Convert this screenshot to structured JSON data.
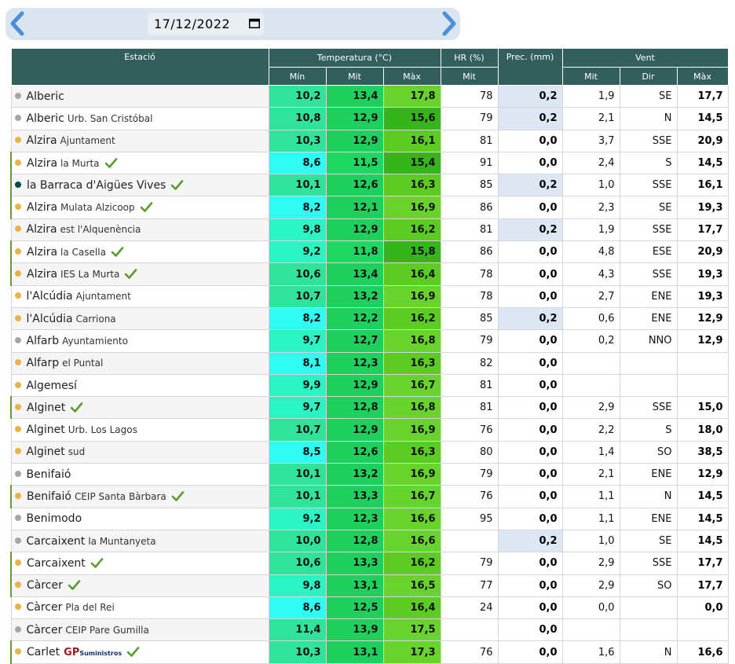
{
  "date_picker": {
    "value": "17/12/2022",
    "prev_icon": "chevron-left-icon",
    "next_icon": "chevron-right-icon",
    "calendar_icon": "calendar-icon"
  },
  "table": {
    "headers": {
      "station": "Estació",
      "temperature": "Temperatura (°C)",
      "humidity": "HR (%)",
      "precip": "Prec. (mm)",
      "wind": "Vent",
      "temp_min": "Mín",
      "temp_avg": "Mit",
      "temp_max": "Màx",
      "hum_avg": "Mit",
      "wind_avg": "Mit",
      "wind_dir": "Dir",
      "wind_max": "Màx"
    },
    "colors": {
      "header_bg": "#325f5c",
      "precip_highlight": "#dde6f3",
      "check_green": "#5a9c2b",
      "dot_orange": "#e9b443",
      "dot_gray": "#a6a6a6",
      "dot_teal": "#004d4d"
    },
    "rows": [
      {
        "name": "Alberic",
        "sub": "",
        "dot": "gray",
        "check": false,
        "min": "10,2",
        "mit": "13,4",
        "max": "17,8",
        "min_c": "#2fe49a",
        "mit_c": "#1fd05f",
        "max_c": "#67d32c",
        "hr": "78",
        "prec": "0,2",
        "prec_hl": true,
        "v_mit": "1,9",
        "v_dir": "SE",
        "v_max": "17,7"
      },
      {
        "name": "Alberic",
        "sub": "Urb. San Cristóbal",
        "dot": "gray",
        "check": false,
        "min": "10,8",
        "mit": "12,9",
        "max": "15,6",
        "min_c": "#2fe49a",
        "mit_c": "#1fd05f",
        "max_c": "#35b41b",
        "hr": "79",
        "prec": "0,2",
        "prec_hl": true,
        "v_mit": "2,1",
        "v_dir": "N",
        "v_max": "14,5"
      },
      {
        "name": "Alzira",
        "sub": "Ajuntament",
        "dot": "orange",
        "check": false,
        "min": "10,3",
        "mit": "12,9",
        "max": "16,1",
        "min_c": "#2fe49a",
        "mit_c": "#1fd05f",
        "max_c": "#5ccc22",
        "hr": "81",
        "prec": "0,0",
        "prec_hl": false,
        "v_mit": "3,7",
        "v_dir": "SSE",
        "v_max": "20,9"
      },
      {
        "name": "Alzira",
        "sub": "la Murta",
        "dot": "orange",
        "check": true,
        "min": "8,6",
        "mit": "11,5",
        "max": "15,4",
        "min_c": "#2efcf2",
        "mit_c": "#1fd864",
        "max_c": "#35b41b",
        "hr": "91",
        "prec": "0,0",
        "prec_hl": false,
        "v_mit": "2,4",
        "v_dir": "S",
        "v_max": "14,5"
      },
      {
        "name": "la Barraca d'Aigües Vives",
        "sub": "",
        "dot": "teal",
        "check": true,
        "min": "10,1",
        "mit": "12,6",
        "max": "16,3",
        "min_c": "#2fe49a",
        "mit_c": "#1fd05f",
        "max_c": "#5ccc22",
        "hr": "85",
        "prec": "0,2",
        "prec_hl": true,
        "v_mit": "1,0",
        "v_dir": "SSE",
        "v_max": "16,1"
      },
      {
        "name": "Alzira",
        "sub": "Mulata Alzicoop",
        "dot": "orange",
        "check": true,
        "min": "8,2",
        "mit": "12,1",
        "max": "16,9",
        "min_c": "#2efcf2",
        "mit_c": "#1fd05f",
        "max_c": "#67d32c",
        "hr": "86",
        "prec": "0,0",
        "prec_hl": false,
        "v_mit": "2,3",
        "v_dir": "SE",
        "v_max": "19,3"
      },
      {
        "name": "Alzira",
        "sub": "est l'Alquenència",
        "dot": "orange",
        "check": false,
        "min": "9,8",
        "mit": "12,9",
        "max": "16,2",
        "min_c": "#2af3c4",
        "mit_c": "#1fd05f",
        "max_c": "#5ccc22",
        "hr": "81",
        "prec": "0,2",
        "prec_hl": true,
        "v_mit": "1,9",
        "v_dir": "SSE",
        "v_max": "17,7"
      },
      {
        "name": "Alzira",
        "sub": "la Casella",
        "dot": "orange",
        "check": true,
        "min": "9,2",
        "mit": "11,8",
        "max": "15,8",
        "min_c": "#2af3c4",
        "mit_c": "#1fd864",
        "max_c": "#35b41b",
        "hr": "86",
        "prec": "0,0",
        "prec_hl": false,
        "v_mit": "4,8",
        "v_dir": "ESE",
        "v_max": "20,9"
      },
      {
        "name": "Alzira",
        "sub": "IES La Murta",
        "dot": "orange",
        "check": true,
        "min": "10,6",
        "mit": "13,4",
        "max": "16,4",
        "min_c": "#2fe49a",
        "mit_c": "#1fd05f",
        "max_c": "#5ccc22",
        "hr": "78",
        "prec": "0,0",
        "prec_hl": false,
        "v_mit": "4,3",
        "v_dir": "SSE",
        "v_max": "19,3"
      },
      {
        "name": "l'Alcúdia",
        "sub": "Ajuntament",
        "dot": "orange",
        "check": false,
        "min": "10,7",
        "mit": "13,2",
        "max": "16,9",
        "min_c": "#2fe49a",
        "mit_c": "#1fd05f",
        "max_c": "#67d32c",
        "hr": "78",
        "prec": "0,0",
        "prec_hl": false,
        "v_mit": "2,7",
        "v_dir": "ENE",
        "v_max": "19,3"
      },
      {
        "name": "l'Alcúdia",
        "sub": "Carriona",
        "dot": "orange",
        "check": false,
        "min": "8,2",
        "mit": "12,2",
        "max": "16,2",
        "min_c": "#2efcf2",
        "mit_c": "#1fd05f",
        "max_c": "#5ccc22",
        "hr": "85",
        "prec": "0,2",
        "prec_hl": true,
        "v_mit": "0,6",
        "v_dir": "ENE",
        "v_max": "12,9"
      },
      {
        "name": "Alfarb",
        "sub": "Ayuntamiento",
        "dot": "gray",
        "check": false,
        "min": "9,7",
        "mit": "12,7",
        "max": "16,8",
        "min_c": "#2af3c4",
        "mit_c": "#1fd05f",
        "max_c": "#67d32c",
        "hr": "79",
        "prec": "0,0",
        "prec_hl": false,
        "v_mit": "0,2",
        "v_dir": "NNO",
        "v_max": "12,9"
      },
      {
        "name": "Alfarp",
        "sub": "el Puntal",
        "dot": "orange",
        "check": false,
        "min": "8,1",
        "mit": "12,3",
        "max": "16,3",
        "min_c": "#2efcf2",
        "mit_c": "#1fd05f",
        "max_c": "#5ccc22",
        "hr": "82",
        "prec": "0,0",
        "prec_hl": false,
        "v_mit": "",
        "v_dir": "",
        "v_max": ""
      },
      {
        "name": "Algemesí",
        "sub": "",
        "dot": "orange",
        "check": false,
        "min": "9,9",
        "mit": "12,9",
        "max": "16,7",
        "min_c": "#2af3c4",
        "mit_c": "#1fd05f",
        "max_c": "#67d32c",
        "hr": "81",
        "prec": "0,0",
        "prec_hl": false,
        "v_mit": "",
        "v_dir": "",
        "v_max": ""
      },
      {
        "name": "Alginet",
        "sub": "",
        "dot": "orange",
        "check": true,
        "min": "9,7",
        "mit": "12,8",
        "max": "16,8",
        "min_c": "#2af3c4",
        "mit_c": "#1fd05f",
        "max_c": "#67d32c",
        "hr": "81",
        "prec": "0,0",
        "prec_hl": false,
        "v_mit": "2,9",
        "v_dir": "SSE",
        "v_max": "15,0"
      },
      {
        "name": "Alginet",
        "sub": "Urb. Los Lagos",
        "dot": "orange",
        "check": false,
        "min": "10,7",
        "mit": "12,9",
        "max": "16,9",
        "min_c": "#2fe49a",
        "mit_c": "#1fd05f",
        "max_c": "#67d32c",
        "hr": "76",
        "prec": "0,0",
        "prec_hl": false,
        "v_mit": "2,2",
        "v_dir": "S",
        "v_max": "18,0"
      },
      {
        "name": "Alginet",
        "sub": "sud",
        "dot": "orange",
        "check": false,
        "min": "8,5",
        "mit": "12,6",
        "max": "16,3",
        "min_c": "#2efcf2",
        "mit_c": "#1fd05f",
        "max_c": "#5ccc22",
        "hr": "80",
        "prec": "0,0",
        "prec_hl": false,
        "v_mit": "1,4",
        "v_dir": "SO",
        "v_max": "38,5"
      },
      {
        "name": "Benifaió",
        "sub": "",
        "dot": "gray",
        "check": false,
        "min": "10,1",
        "mit": "13,2",
        "max": "16,9",
        "min_c": "#2fe49a",
        "mit_c": "#1fd05f",
        "max_c": "#67d32c",
        "hr": "79",
        "prec": "0,0",
        "prec_hl": false,
        "v_mit": "2,1",
        "v_dir": "ENE",
        "v_max": "12,9"
      },
      {
        "name": "Benifaió",
        "sub": "CEIP Santa Bàrbara",
        "dot": "orange",
        "check": true,
        "min": "10,1",
        "mit": "13,3",
        "max": "16,7",
        "min_c": "#2fe49a",
        "mit_c": "#1fd05f",
        "max_c": "#67d32c",
        "hr": "76",
        "prec": "0,0",
        "prec_hl": false,
        "v_mit": "1,1",
        "v_dir": "N",
        "v_max": "14,5"
      },
      {
        "name": "Benimodo",
        "sub": "",
        "dot": "gray",
        "check": false,
        "min": "9,2",
        "mit": "12,3",
        "max": "16,6",
        "min_c": "#2af3c4",
        "mit_c": "#1fd05f",
        "max_c": "#67d32c",
        "hr": "95",
        "prec": "0,0",
        "prec_hl": false,
        "v_mit": "1,1",
        "v_dir": "ENE",
        "v_max": "14,5"
      },
      {
        "name": "Carcaixent",
        "sub": "la Muntanyeta",
        "dot": "gray",
        "check": false,
        "min": "10,0",
        "mit": "12,8",
        "max": "16,6",
        "min_c": "#2fe49a",
        "mit_c": "#1fd05f",
        "max_c": "#67d32c",
        "hr": "",
        "prec": "0,2",
        "prec_hl": true,
        "v_mit": "1,0",
        "v_dir": "SE",
        "v_max": "14,5"
      },
      {
        "name": "Carcaixent",
        "sub": "",
        "dot": "orange",
        "check": true,
        "min": "10,6",
        "mit": "13,3",
        "max": "16,2",
        "min_c": "#2fe49a",
        "mit_c": "#1fd05f",
        "max_c": "#5ccc22",
        "hr": "79",
        "prec": "0,0",
        "prec_hl": false,
        "v_mit": "2,9",
        "v_dir": "SSE",
        "v_max": "17,7"
      },
      {
        "name": "Càrcer",
        "sub": "",
        "dot": "orange",
        "check": true,
        "min": "9,8",
        "mit": "13,1",
        "max": "16,5",
        "min_c": "#2af3c4",
        "mit_c": "#1fd05f",
        "max_c": "#67d32c",
        "hr": "77",
        "prec": "0,0",
        "prec_hl": false,
        "v_mit": "2,9",
        "v_dir": "SO",
        "v_max": "17,7"
      },
      {
        "name": "Càrcer",
        "sub": "Pla del Rei",
        "dot": "orange",
        "check": false,
        "min": "8,6",
        "mit": "12,5",
        "max": "16,4",
        "min_c": "#2efcf2",
        "mit_c": "#1fd05f",
        "max_c": "#5ccc22",
        "hr": "24",
        "prec": "0,0",
        "prec_hl": false,
        "v_mit": "0,0",
        "v_dir": "",
        "v_max": "0,0"
      },
      {
        "name": "Càrcer",
        "sub": "CEIP Pare Gumilla",
        "dot": "gray",
        "check": false,
        "min": "11,4",
        "mit": "13,9",
        "max": "17,5",
        "min_c": "#2fe49a",
        "mit_c": "#1fd05f",
        "max_c": "#67d32c",
        "hr": "",
        "prec": "0,0",
        "prec_hl": false,
        "v_mit": "",
        "v_dir": "",
        "v_max": ""
      },
      {
        "name": "Carlet",
        "sub": "",
        "dot": "orange",
        "check": true,
        "logo": true,
        "logo_a": "GP",
        "logo_b": "Suministros",
        "min": "10,3",
        "mit": "13,1",
        "max": "17,3",
        "min_c": "#2fe49a",
        "mit_c": "#1fd05f",
        "max_c": "#67d32c",
        "hr": "76",
        "prec": "0,0",
        "prec_hl": false,
        "v_mit": "1,6",
        "v_dir": "N",
        "v_max": "16,6"
      }
    ]
  }
}
